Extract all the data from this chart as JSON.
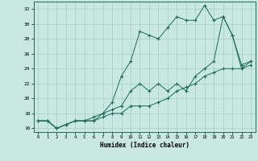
{
  "xlabel": "Humidex (Indice chaleur)",
  "ylabel": "",
  "bg_color": "#c8e8e0",
  "grid_color": "#a8ccc4",
  "line_color": "#1a6b5a",
  "x_values": [
    0,
    1,
    2,
    3,
    4,
    5,
    6,
    7,
    8,
    9,
    10,
    11,
    12,
    13,
    14,
    15,
    16,
    17,
    18,
    19,
    20,
    21,
    22,
    23
  ],
  "line_max": [
    17,
    17,
    16,
    16.5,
    17,
    17,
    17.5,
    18,
    19.5,
    23,
    25,
    29,
    28.5,
    28,
    29.5,
    31,
    30.5,
    30.5,
    32.5,
    30.5,
    31,
    28.5,
    24,
    25
  ],
  "line_mid": [
    17,
    17,
    16,
    16.5,
    17,
    17,
    17,
    18,
    18.5,
    19,
    21,
    22,
    21,
    22,
    21,
    22,
    21,
    23,
    24,
    25,
    31,
    28.5,
    24.5,
    25
  ],
  "line_min": [
    17,
    17,
    16,
    16.5,
    17,
    17,
    17,
    17.5,
    18,
    18,
    19,
    19,
    19,
    19.5,
    20,
    21,
    21.5,
    22,
    23,
    23.5,
    24,
    24,
    24,
    24.5
  ],
  "xlim": [
    -0.5,
    23.5
  ],
  "ylim": [
    15.5,
    33
  ],
  "yticks": [
    16,
    18,
    20,
    22,
    24,
    26,
    28,
    30,
    32
  ],
  "xticks": [
    0,
    1,
    2,
    3,
    4,
    5,
    6,
    7,
    8,
    9,
    10,
    11,
    12,
    13,
    14,
    15,
    16,
    17,
    18,
    19,
    20,
    21,
    22,
    23
  ]
}
